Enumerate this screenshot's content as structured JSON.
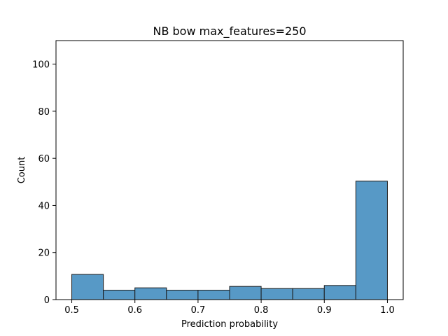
{
  "chart_data": {
    "type": "bar",
    "title": "NB bow max_features=250",
    "xlabel": "Prediction probability",
    "ylabel": "Count",
    "xlim": [
      0.475,
      1.025
    ],
    "ylim": [
      0,
      110
    ],
    "x_ticks": [
      0.5,
      0.6,
      0.7,
      0.8,
      0.9,
      1.0
    ],
    "x_tick_labels": [
      "0.5",
      "0.6",
      "0.7",
      "0.8",
      "0.9",
      "1.0"
    ],
    "y_ticks": [
      0,
      20,
      40,
      60,
      80,
      100
    ],
    "y_tick_labels": [
      "0",
      "20",
      "40",
      "60",
      "80",
      "100"
    ],
    "grid": false,
    "bin_edges": [
      0.5,
      0.55,
      0.6,
      0.65,
      0.7,
      0.75,
      0.8,
      0.85,
      0.9,
      0.95,
      1.0
    ],
    "values": [
      10.7,
      4.0,
      5.0,
      4.0,
      4.0,
      5.6,
      4.7,
      4.7,
      6.0,
      50.3
    ],
    "bar_color": "#5799c6",
    "edge_color": "#1a1a1a"
  }
}
